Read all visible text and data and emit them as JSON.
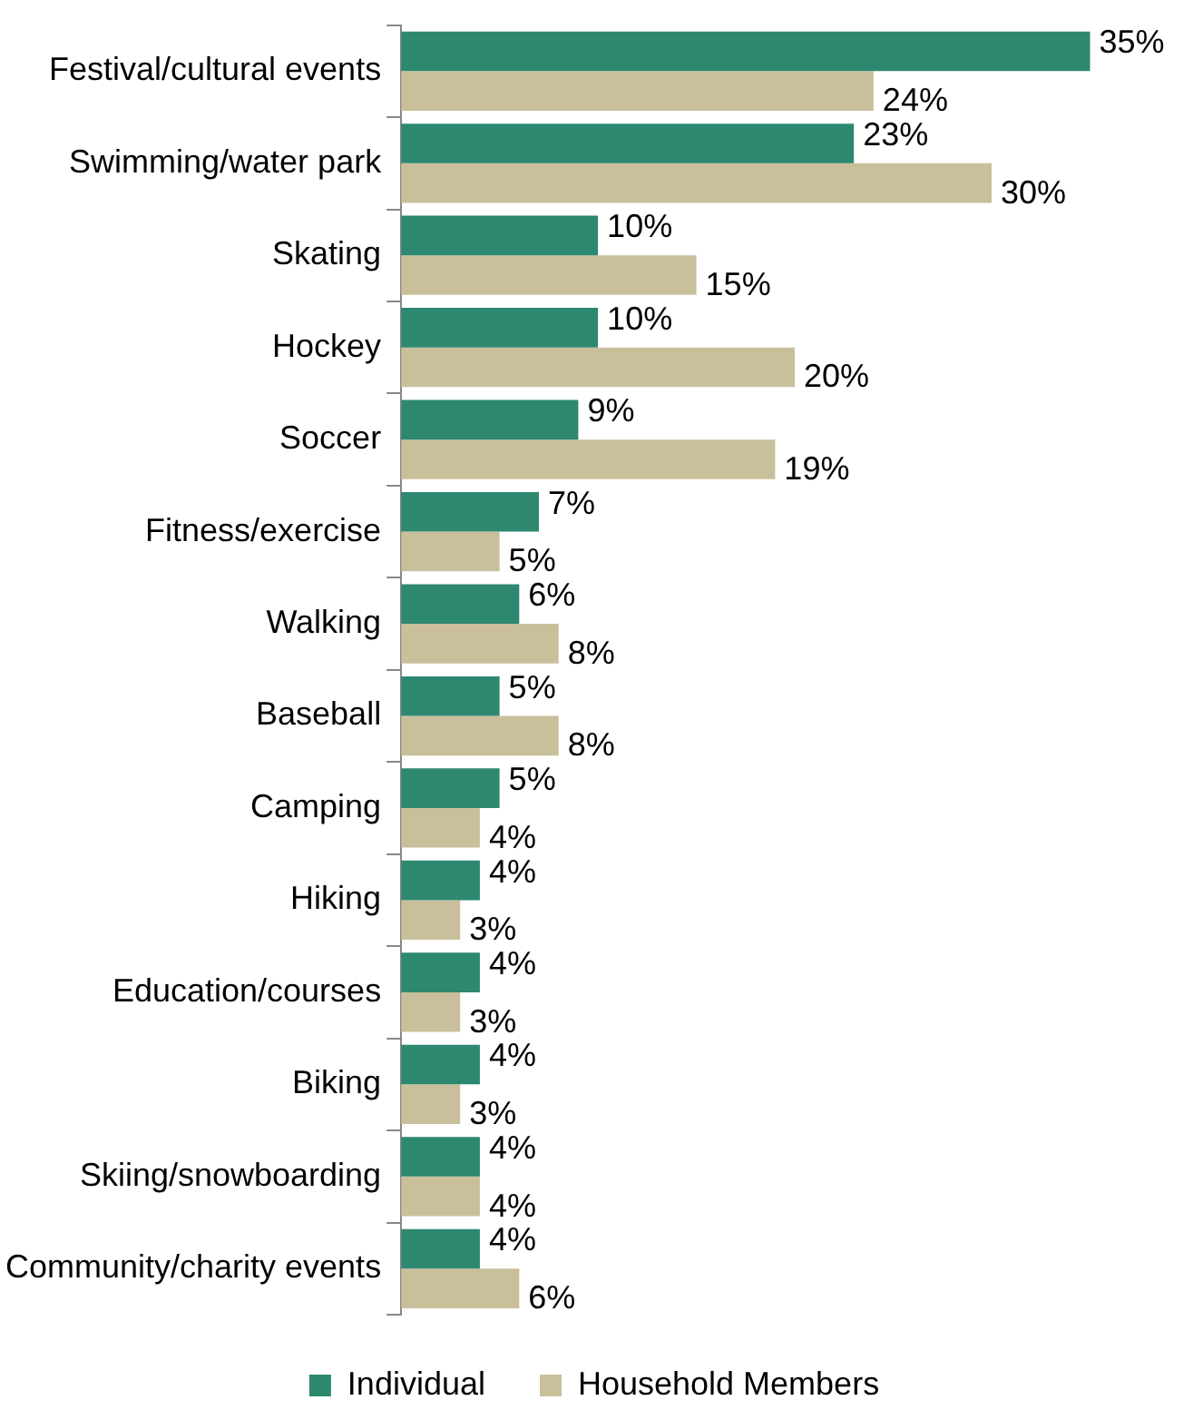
{
  "chart_data": {
    "type": "bar",
    "orientation": "horizontal",
    "legend": "bottom",
    "categories": [
      "Festival/cultural events",
      "Swimming/water park",
      "Skating",
      "Hockey",
      "Soccer",
      "Fitness/exercise",
      "Walking",
      "Baseball",
      "Camping",
      "Hiking",
      "Education/courses",
      "Biking",
      "Skiing/snowboarding",
      "Community/charity events"
    ],
    "series": [
      {
        "name": "Individual",
        "color": "#2e8870",
        "values": [
          35,
          23,
          10,
          10,
          9,
          7,
          6,
          5,
          5,
          4,
          4,
          4,
          4,
          4
        ],
        "value_labels": [
          "35%",
          "23%",
          "10%",
          "10%",
          "9%",
          "7%",
          "6%",
          "5%",
          "5%",
          "4%",
          "4%",
          "4%",
          "4%",
          "4%"
        ]
      },
      {
        "name": "Household Members",
        "color": "#c9c09b",
        "values": [
          24,
          30,
          15,
          20,
          19,
          5,
          8,
          8,
          4,
          3,
          3,
          3,
          4,
          6
        ],
        "value_labels": [
          "24%",
          "30%",
          "15%",
          "20%",
          "19%",
          "5%",
          "8%",
          "8%",
          "4%",
          "3%",
          "3%",
          "3%",
          "4%",
          "6%"
        ]
      }
    ]
  }
}
